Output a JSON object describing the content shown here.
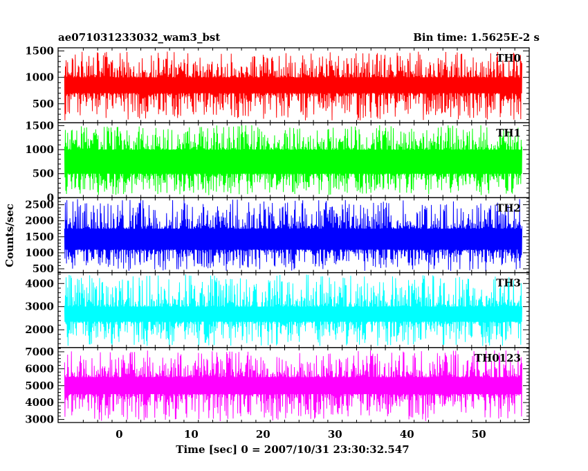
{
  "header": {
    "title": "ae071031233032_wam3_bst",
    "bin_time": "Bin time: 1.5625E-2 s"
  },
  "chart_data": {
    "type": "line",
    "xlabel": "Time [sec] 0 = 2007/10/31 23:30:32.547",
    "ylabel": "Counts/sec",
    "xlim": [
      -8.5,
      57
    ],
    "data_xrange": [
      -7.6,
      56
    ],
    "xticks": [
      0,
      10,
      20,
      30,
      40,
      50
    ],
    "grid": false,
    "panels": [
      {
        "name": "TH0",
        "color": "#ff0000",
        "ylim": [
          140,
          1560
        ],
        "yticks": [
          500,
          1000,
          1500
        ],
        "band_low": 700,
        "band_high": 1000,
        "min": 180,
        "max": 1490
      },
      {
        "name": "TH1",
        "color": "#00ff00",
        "ylim": [
          0,
          1560
        ],
        "yticks": [
          0,
          500,
          1000,
          1500
        ],
        "band_low": 500,
        "band_high": 1000,
        "min": 50,
        "max": 1510
      },
      {
        "name": "TH2",
        "color": "#0000ff",
        "ylim": [
          380,
          2720
        ],
        "yticks": [
          500,
          1000,
          1500,
          2000,
          2500
        ],
        "band_low": 1100,
        "band_high": 1750,
        "min": 420,
        "max": 2680
      },
      {
        "name": "TH3",
        "color": "#00ffff",
        "ylim": [
          1230,
          4470
        ],
        "yticks": [
          2000,
          3000,
          4000
        ],
        "band_low": 2350,
        "band_high": 3000,
        "min": 1300,
        "max": 4400
      },
      {
        "name": "TH0123",
        "color": "#ff00ff",
        "ylim": [
          2820,
          7250
        ],
        "yticks": [
          3000,
          4000,
          5000,
          6000,
          7000
        ],
        "band_low": 4500,
        "band_high": 5500,
        "min": 2900,
        "max": 7100
      }
    ]
  }
}
